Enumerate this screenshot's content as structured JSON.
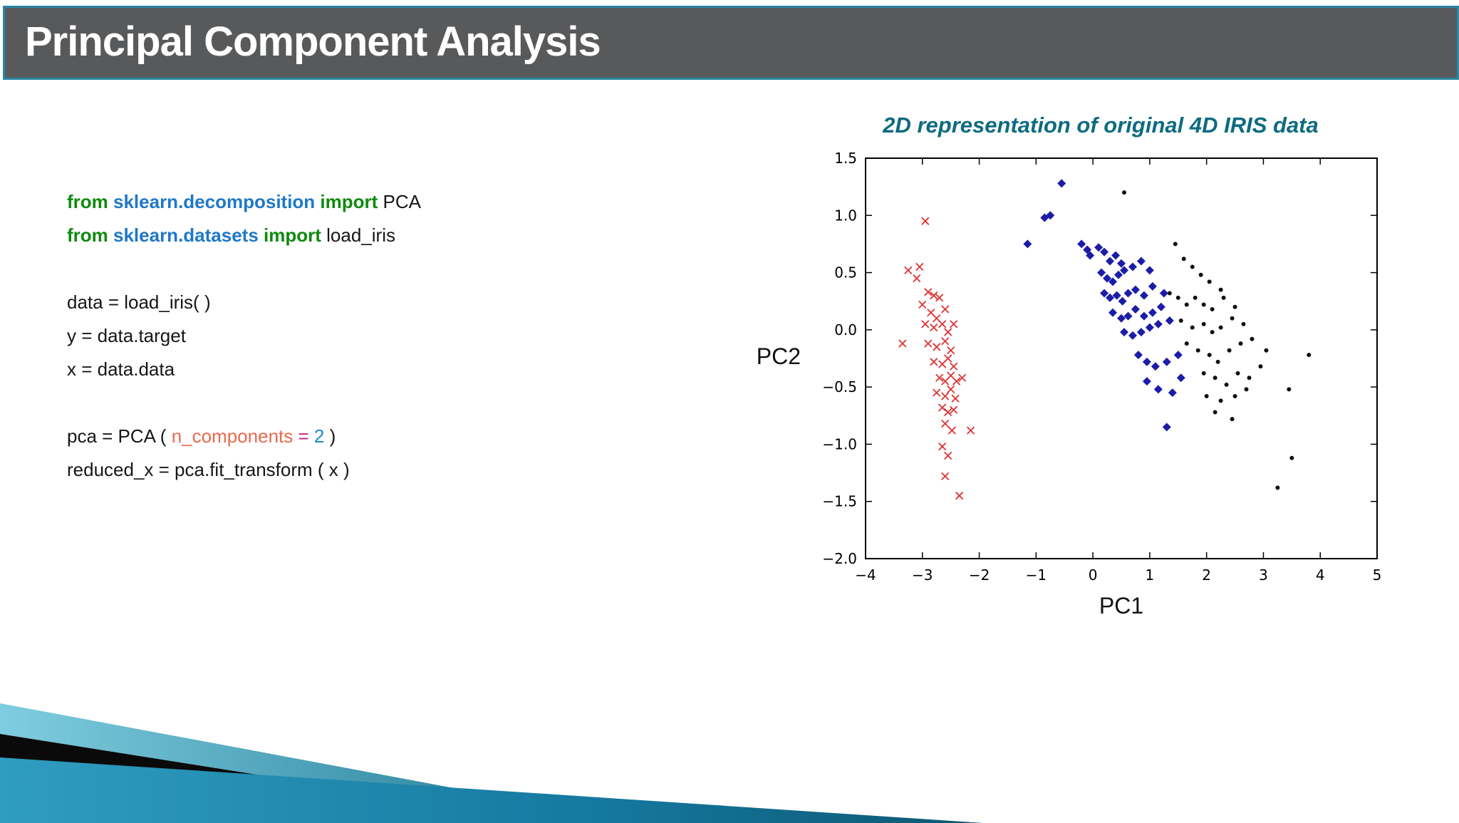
{
  "slide": {
    "title": "Principal Component Analysis"
  },
  "code": {
    "lines": [
      [
        [
          "kw",
          "from "
        ],
        [
          "mod",
          "sklearn.decomposition"
        ],
        [
          "kw",
          " import "
        ],
        [
          "plain",
          "PCA"
        ]
      ],
      [
        [
          "kw",
          "from "
        ],
        [
          "mod",
          "sklearn.datasets"
        ],
        [
          "kw",
          " import "
        ],
        [
          "plain",
          "load_iris"
        ]
      ],
      [],
      [
        [
          "plain",
          "data = load_iris( )"
        ]
      ],
      [
        [
          "plain",
          "y = data.target"
        ]
      ],
      [
        [
          "plain",
          "x = data.data"
        ]
      ],
      [],
      [
        [
          "plain",
          "pca = PCA ( "
        ],
        [
          "param",
          "n_components"
        ],
        [
          "op",
          " = "
        ],
        [
          "num",
          "2"
        ],
        [
          "plain",
          " )"
        ]
      ],
      [
        [
          "plain",
          "reduced_x = pca.fit_transform ( x )"
        ]
      ]
    ]
  },
  "chart_data": {
    "type": "scatter",
    "title": "2D representation of original 4D IRIS data",
    "xlabel": "PC1",
    "ylabel": "PC2",
    "xlim": [
      -4,
      5
    ],
    "ylim": [
      -2.0,
      1.5
    ],
    "xticks": [
      -4,
      -3,
      -2,
      -1,
      0,
      1,
      2,
      3,
      4,
      5
    ],
    "yticks": [
      -2.0,
      -1.5,
      -1.0,
      -0.5,
      0.0,
      0.5,
      1.0,
      1.5
    ],
    "grid": false,
    "legend": "none",
    "series": [
      {
        "name": "red-x-cluster",
        "marker": "x",
        "color": "#dd3333",
        "points": [
          [
            -2.95,
            0.95
          ],
          [
            -3.25,
            0.52
          ],
          [
            -3.05,
            0.55
          ],
          [
            -3.1,
            0.45
          ],
          [
            -2.9,
            0.33
          ],
          [
            -2.8,
            0.3
          ],
          [
            -3.0,
            0.22
          ],
          [
            -2.7,
            0.28
          ],
          [
            -2.85,
            0.15
          ],
          [
            -2.75,
            0.1
          ],
          [
            -2.6,
            0.18
          ],
          [
            -2.95,
            0.05
          ],
          [
            -2.8,
            0.02
          ],
          [
            -2.65,
            0.05
          ],
          [
            -2.55,
            -0.02
          ],
          [
            -2.45,
            0.05
          ],
          [
            -3.35,
            -0.12
          ],
          [
            -2.9,
            -0.12
          ],
          [
            -2.75,
            -0.15
          ],
          [
            -2.6,
            -0.1
          ],
          [
            -2.5,
            -0.18
          ],
          [
            -2.8,
            -0.28
          ],
          [
            -2.65,
            -0.3
          ],
          [
            -2.55,
            -0.25
          ],
          [
            -2.45,
            -0.32
          ],
          [
            -2.7,
            -0.42
          ],
          [
            -2.6,
            -0.45
          ],
          [
            -2.5,
            -0.4
          ],
          [
            -2.4,
            -0.45
          ],
          [
            -2.3,
            -0.42
          ],
          [
            -2.75,
            -0.55
          ],
          [
            -2.6,
            -0.58
          ],
          [
            -2.5,
            -0.52
          ],
          [
            -2.42,
            -0.6
          ],
          [
            -2.65,
            -0.68
          ],
          [
            -2.55,
            -0.72
          ],
          [
            -2.45,
            -0.7
          ],
          [
            -2.6,
            -0.82
          ],
          [
            -2.48,
            -0.88
          ],
          [
            -2.15,
            -0.88
          ],
          [
            -2.65,
            -1.02
          ],
          [
            -2.55,
            -1.1
          ],
          [
            -2.6,
            -1.28
          ],
          [
            -2.35,
            -1.45
          ]
        ]
      },
      {
        "name": "blue-diamond-cluster",
        "marker": "diamond",
        "color": "#1c1ca8",
        "points": [
          [
            -0.55,
            1.28
          ],
          [
            -0.75,
            1.0
          ],
          [
            -0.85,
            0.98
          ],
          [
            -1.15,
            0.75
          ],
          [
            -0.2,
            0.75
          ],
          [
            -0.1,
            0.7
          ],
          [
            -0.05,
            0.65
          ],
          [
            0.1,
            0.72
          ],
          [
            0.2,
            0.68
          ],
          [
            0.3,
            0.6
          ],
          [
            0.4,
            0.65
          ],
          [
            0.5,
            0.58
          ],
          [
            0.15,
            0.5
          ],
          [
            0.25,
            0.45
          ],
          [
            0.35,
            0.42
          ],
          [
            0.45,
            0.48
          ],
          [
            0.55,
            0.52
          ],
          [
            0.7,
            0.55
          ],
          [
            0.85,
            0.6
          ],
          [
            1.0,
            0.52
          ],
          [
            0.2,
            0.32
          ],
          [
            0.3,
            0.28
          ],
          [
            0.42,
            0.3
          ],
          [
            0.52,
            0.25
          ],
          [
            0.62,
            0.32
          ],
          [
            0.75,
            0.35
          ],
          [
            0.9,
            0.3
          ],
          [
            1.05,
            0.38
          ],
          [
            1.25,
            0.32
          ],
          [
            0.35,
            0.15
          ],
          [
            0.5,
            0.1
          ],
          [
            0.62,
            0.12
          ],
          [
            0.75,
            0.18
          ],
          [
            0.9,
            0.12
          ],
          [
            1.05,
            0.15
          ],
          [
            1.2,
            0.2
          ],
          [
            0.55,
            -0.02
          ],
          [
            0.7,
            -0.05
          ],
          [
            0.85,
            -0.02
          ],
          [
            1.0,
            0.02
          ],
          [
            1.15,
            0.05
          ],
          [
            1.35,
            0.08
          ],
          [
            0.8,
            -0.22
          ],
          [
            0.95,
            -0.28
          ],
          [
            1.1,
            -0.32
          ],
          [
            1.3,
            -0.28
          ],
          [
            1.5,
            -0.22
          ],
          [
            0.95,
            -0.45
          ],
          [
            1.15,
            -0.52
          ],
          [
            1.4,
            -0.55
          ],
          [
            1.55,
            -0.42
          ],
          [
            1.3,
            -0.85
          ]
        ]
      },
      {
        "name": "black-dot-cluster",
        "marker": "dot",
        "color": "#111111",
        "points": [
          [
            0.55,
            1.2
          ],
          [
            1.45,
            0.75
          ],
          [
            1.6,
            0.62
          ],
          [
            1.75,
            0.55
          ],
          [
            1.9,
            0.48
          ],
          [
            2.05,
            0.42
          ],
          [
            2.25,
            0.35
          ],
          [
            1.35,
            0.32
          ],
          [
            1.5,
            0.28
          ],
          [
            1.65,
            0.22
          ],
          [
            1.8,
            0.28
          ],
          [
            1.95,
            0.22
          ],
          [
            2.1,
            0.18
          ],
          [
            2.3,
            0.28
          ],
          [
            2.5,
            0.2
          ],
          [
            1.55,
            0.08
          ],
          [
            1.75,
            0.02
          ],
          [
            1.95,
            0.05
          ],
          [
            2.1,
            -0.02
          ],
          [
            2.25,
            0.02
          ],
          [
            2.45,
            0.1
          ],
          [
            2.65,
            0.05
          ],
          [
            1.65,
            -0.12
          ],
          [
            1.85,
            -0.18
          ],
          [
            2.05,
            -0.22
          ],
          [
            2.2,
            -0.28
          ],
          [
            2.4,
            -0.18
          ],
          [
            2.6,
            -0.12
          ],
          [
            2.8,
            -0.08
          ],
          [
            3.05,
            -0.18
          ],
          [
            3.8,
            -0.22
          ],
          [
            1.95,
            -0.38
          ],
          [
            2.15,
            -0.42
          ],
          [
            2.35,
            -0.48
          ],
          [
            2.55,
            -0.38
          ],
          [
            2.75,
            -0.42
          ],
          [
            2.95,
            -0.32
          ],
          [
            2.0,
            -0.58
          ],
          [
            2.25,
            -0.62
          ],
          [
            2.5,
            -0.58
          ],
          [
            2.7,
            -0.52
          ],
          [
            3.45,
            -0.52
          ],
          [
            2.15,
            -0.72
          ],
          [
            2.45,
            -0.78
          ],
          [
            3.5,
            -1.12
          ],
          [
            3.25,
            -1.38
          ]
        ]
      }
    ]
  },
  "colors": {
    "title_bar_bg": "#58595b",
    "title_bar_border": "#2a87a2",
    "chart_title": "#0d6b80",
    "deco_teal_light": "#7fcde0",
    "deco_teal_dark": "#0d5872",
    "deco_black": "#0a0a0a"
  }
}
